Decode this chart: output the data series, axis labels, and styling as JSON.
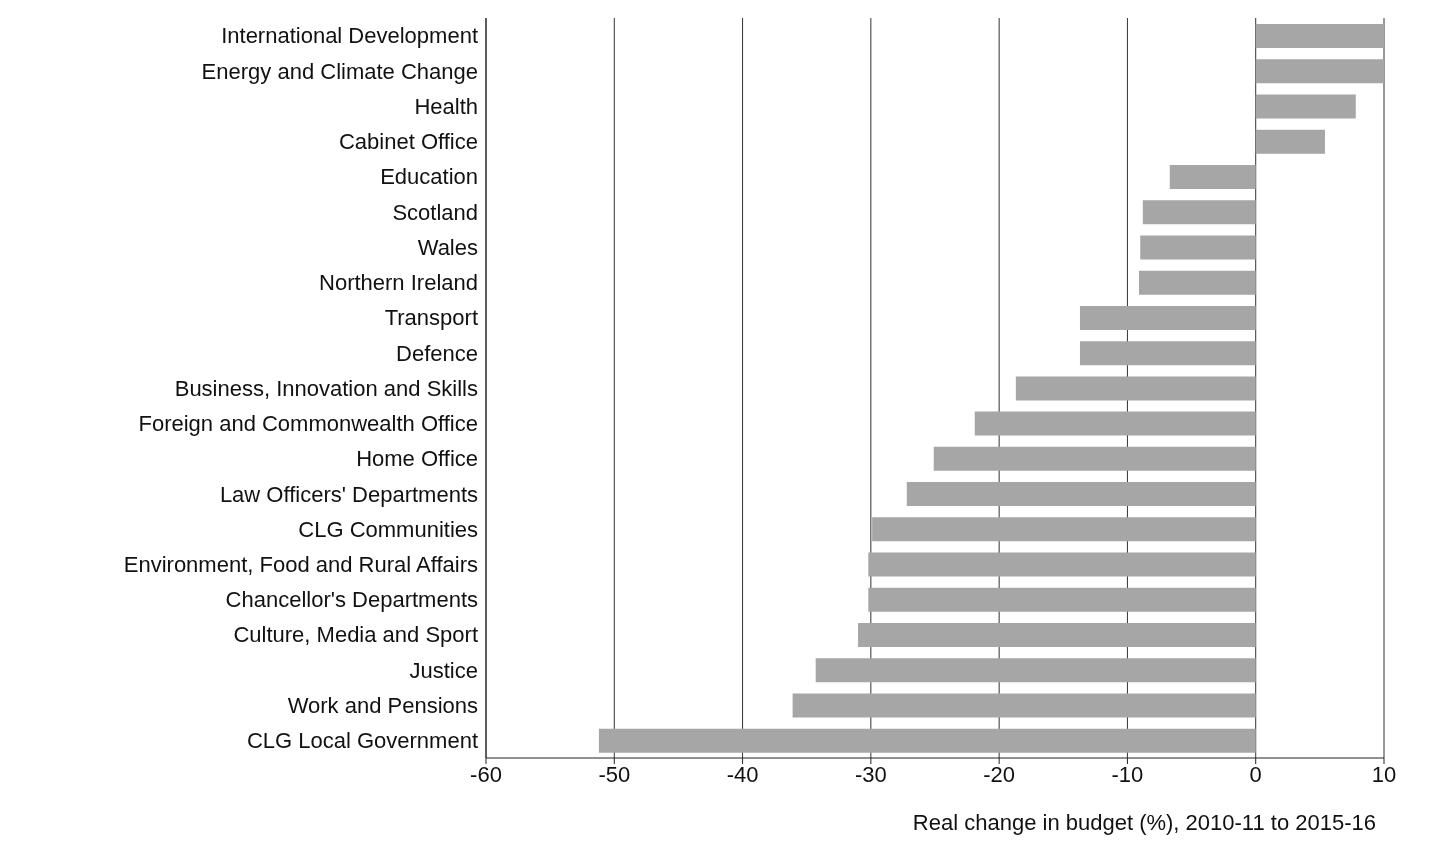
{
  "chart_data": {
    "type": "bar",
    "orientation": "horizontal",
    "xlabel": "Real change in budget (%), 2010-11 to 2015-16",
    "categories": [
      "International Development",
      "Energy and Climate Change",
      "Health",
      "Cabinet Office",
      "Education",
      "Scotland",
      "Wales",
      "Northern Ireland",
      "Transport",
      "Defence",
      "Business, Innovation and Skills",
      "Foreign and Commonwealth Office",
      "Home Office",
      "Law Officers' Departments",
      "CLG Communities",
      "Environment, Food and Rural Affairs",
      "Chancellor's Departments",
      "Culture, Media and Sport",
      "Justice",
      "Work and Pensions",
      "CLG Local Government"
    ],
    "values": [
      10,
      10,
      7.8,
      5.4,
      -6.7,
      -8.8,
      -9.0,
      -9.1,
      -13.7,
      -13.7,
      -18.7,
      -21.9,
      -25.1,
      -27.2,
      -29.9,
      -30.2,
      -30.2,
      -31.0,
      -34.3,
      -36.1,
      -51.2
    ],
    "color": "#a6a6a6",
    "xlim": [
      -60,
      10
    ],
    "xticks": [
      -60,
      -50,
      -40,
      -30,
      -20,
      -10,
      0,
      10
    ],
    "grid": "x"
  }
}
